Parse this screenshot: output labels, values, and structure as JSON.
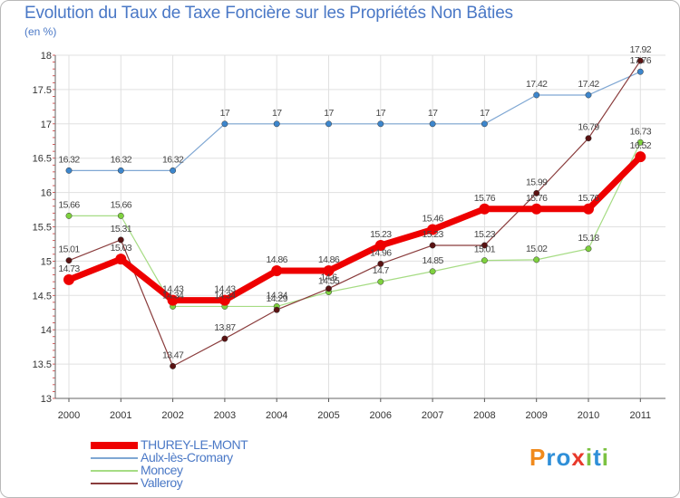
{
  "title": "Evolution du Taux de Taxe Foncière sur les Propriétés Non Bâties",
  "unit_label": "(en %)",
  "logo": {
    "letters": [
      "P",
      "r",
      "o",
      "x",
      "i",
      "t",
      "i"
    ],
    "colors": [
      "#f08a1c",
      "#2f8fd8",
      "#2f8fd8",
      "#e8392b",
      "#7cc242",
      "#2f8fd8",
      "#7cc242"
    ]
  },
  "chart_data": {
    "type": "line",
    "title": "Evolution du Taux de Taxe Foncière sur les Propriétés Non Bâties",
    "ylabel": "(en %)",
    "xlabel": "",
    "x": [
      "2000",
      "2001",
      "2002",
      "2003",
      "2004",
      "2005",
      "2006",
      "2007",
      "2008",
      "2009",
      "2010",
      "2011"
    ],
    "ylim": [
      13,
      18
    ],
    "yticks": [
      13,
      13.5,
      14,
      14.5,
      15,
      15.5,
      16,
      16.5,
      17,
      17.5,
      18
    ],
    "ytick_labels": [
      "13",
      "13.5",
      "14",
      "14.5",
      "15",
      "15.5",
      "16",
      "16.5",
      "17",
      "17.5",
      "18"
    ],
    "grid": true,
    "legend_position": "bottom-left",
    "series": [
      {
        "name": "THUREY-LE-MONT",
        "color": "#ee0000",
        "marker_color": "#ee0000",
        "width": 7,
        "marker": 6,
        "values": [
          14.73,
          15.03,
          14.43,
          14.43,
          14.86,
          14.86,
          15.23,
          15.46,
          15.76,
          15.76,
          15.76,
          16.52
        ],
        "labels": [
          "14.73",
          "15.03",
          "14.43",
          "14.43",
          "14.86",
          "14.86",
          "15.23",
          "15.46",
          "15.76",
          "15.76",
          "15.76",
          "16.52"
        ]
      },
      {
        "name": "Aulx-lès-Cromary",
        "color": "#7fa7d3",
        "marker_color": "#3d86cc",
        "width": 1.2,
        "marker": 3.2,
        "values": [
          16.32,
          16.32,
          16.32,
          17,
          17,
          17,
          17,
          17,
          17,
          17.42,
          17.42,
          17.76
        ],
        "labels": [
          "16.32",
          "16.32",
          "16.32",
          "17",
          "17",
          "17",
          "17",
          "17",
          "17",
          "17.42",
          "17.42",
          "17.76"
        ]
      },
      {
        "name": "Moncey",
        "color": "#a6dc84",
        "marker_color": "#7fd13f",
        "width": 1.2,
        "marker": 3.2,
        "values": [
          15.66,
          15.66,
          14.34,
          14.34,
          14.34,
          14.55,
          14.7,
          14.85,
          15.01,
          15.02,
          15.18,
          16.73
        ],
        "labels": [
          "15.66",
          "15.66",
          "14.34",
          "14.34",
          "14.34",
          "14.55",
          "14.7",
          "14.85",
          "15.01",
          "15.02",
          "15.18",
          "16.73"
        ]
      },
      {
        "name": "Valleroy",
        "color": "#8a3c3c",
        "marker_color": "#5a1212",
        "width": 1.2,
        "marker": 3.2,
        "values": [
          15.01,
          15.31,
          13.47,
          13.87,
          14.29,
          14.6,
          14.96,
          15.23,
          15.23,
          15.99,
          16.79,
          17.92
        ],
        "labels": [
          "15.01",
          "15.31",
          "13.47",
          "13.87",
          "14.29",
          "14.6",
          "14.96",
          "15.23",
          "15.23",
          "15.99",
          "16.79",
          "17.92"
        ]
      }
    ]
  }
}
